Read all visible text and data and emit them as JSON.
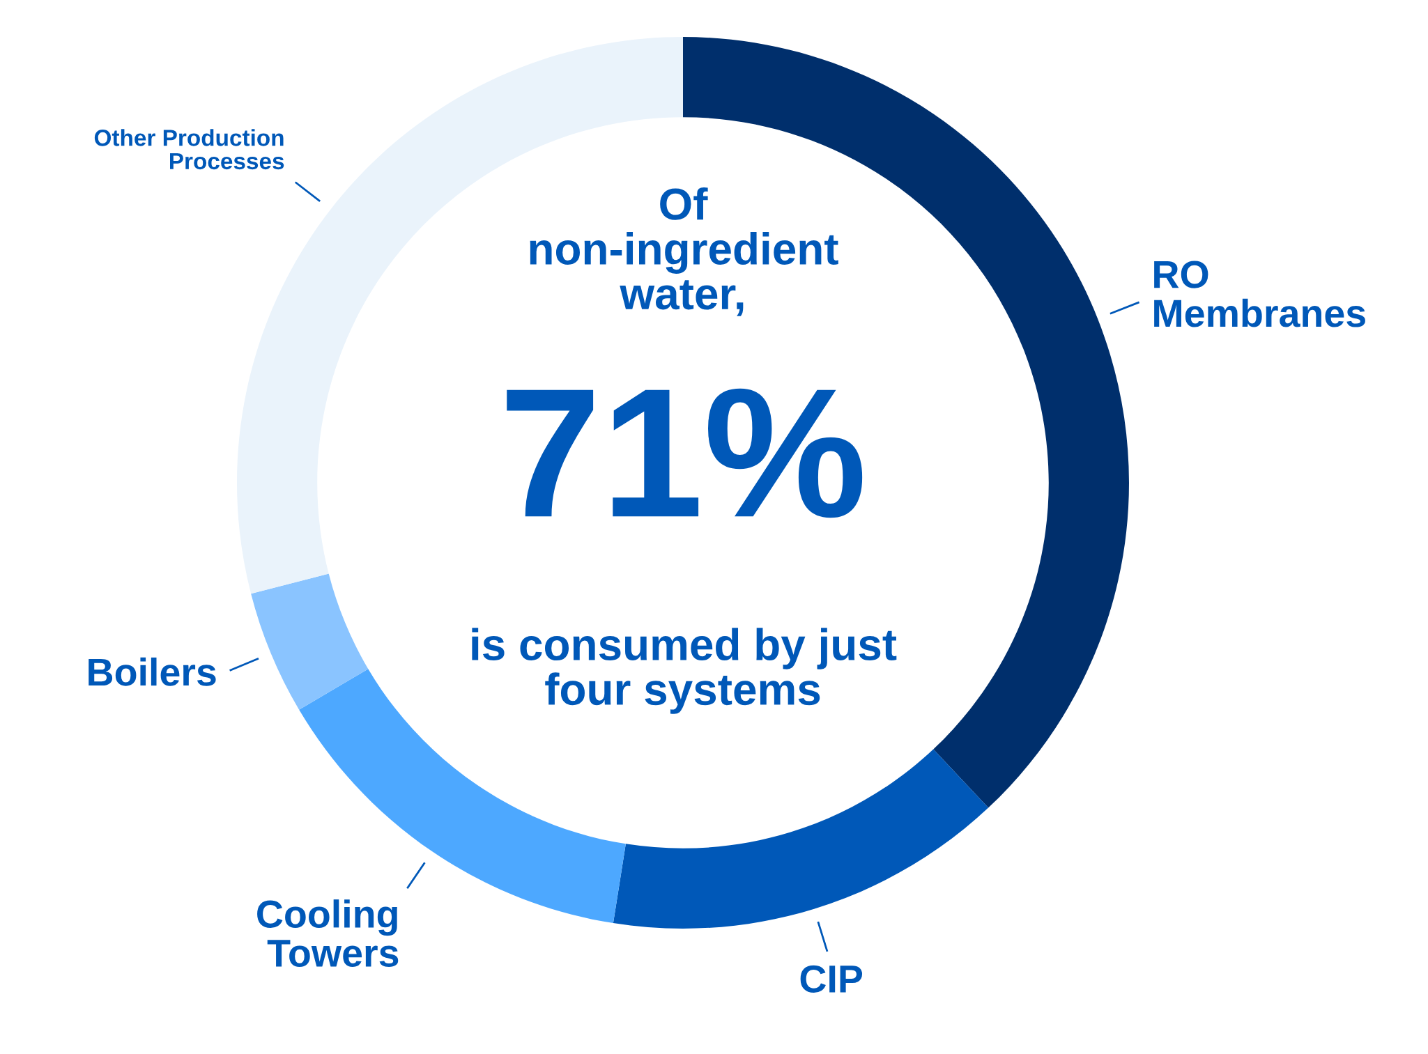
{
  "chart_data": {
    "type": "donut",
    "categories": [
      "RO\nMembranes",
      "CIP",
      "Cooling\nTowers",
      "Boilers",
      "Other Production\nProcesses"
    ],
    "values": [
      38,
      14.5,
      14,
      4.5,
      29
    ],
    "colors": [
      "#002f6c",
      "#0058b8",
      "#4da8ff",
      "#8ac4ff",
      "#eaf3fb"
    ],
    "annotations": [
      "Of\nnon-ingredient\nwater,",
      "71%",
      "is consumed by just\nfour systems"
    ]
  }
}
